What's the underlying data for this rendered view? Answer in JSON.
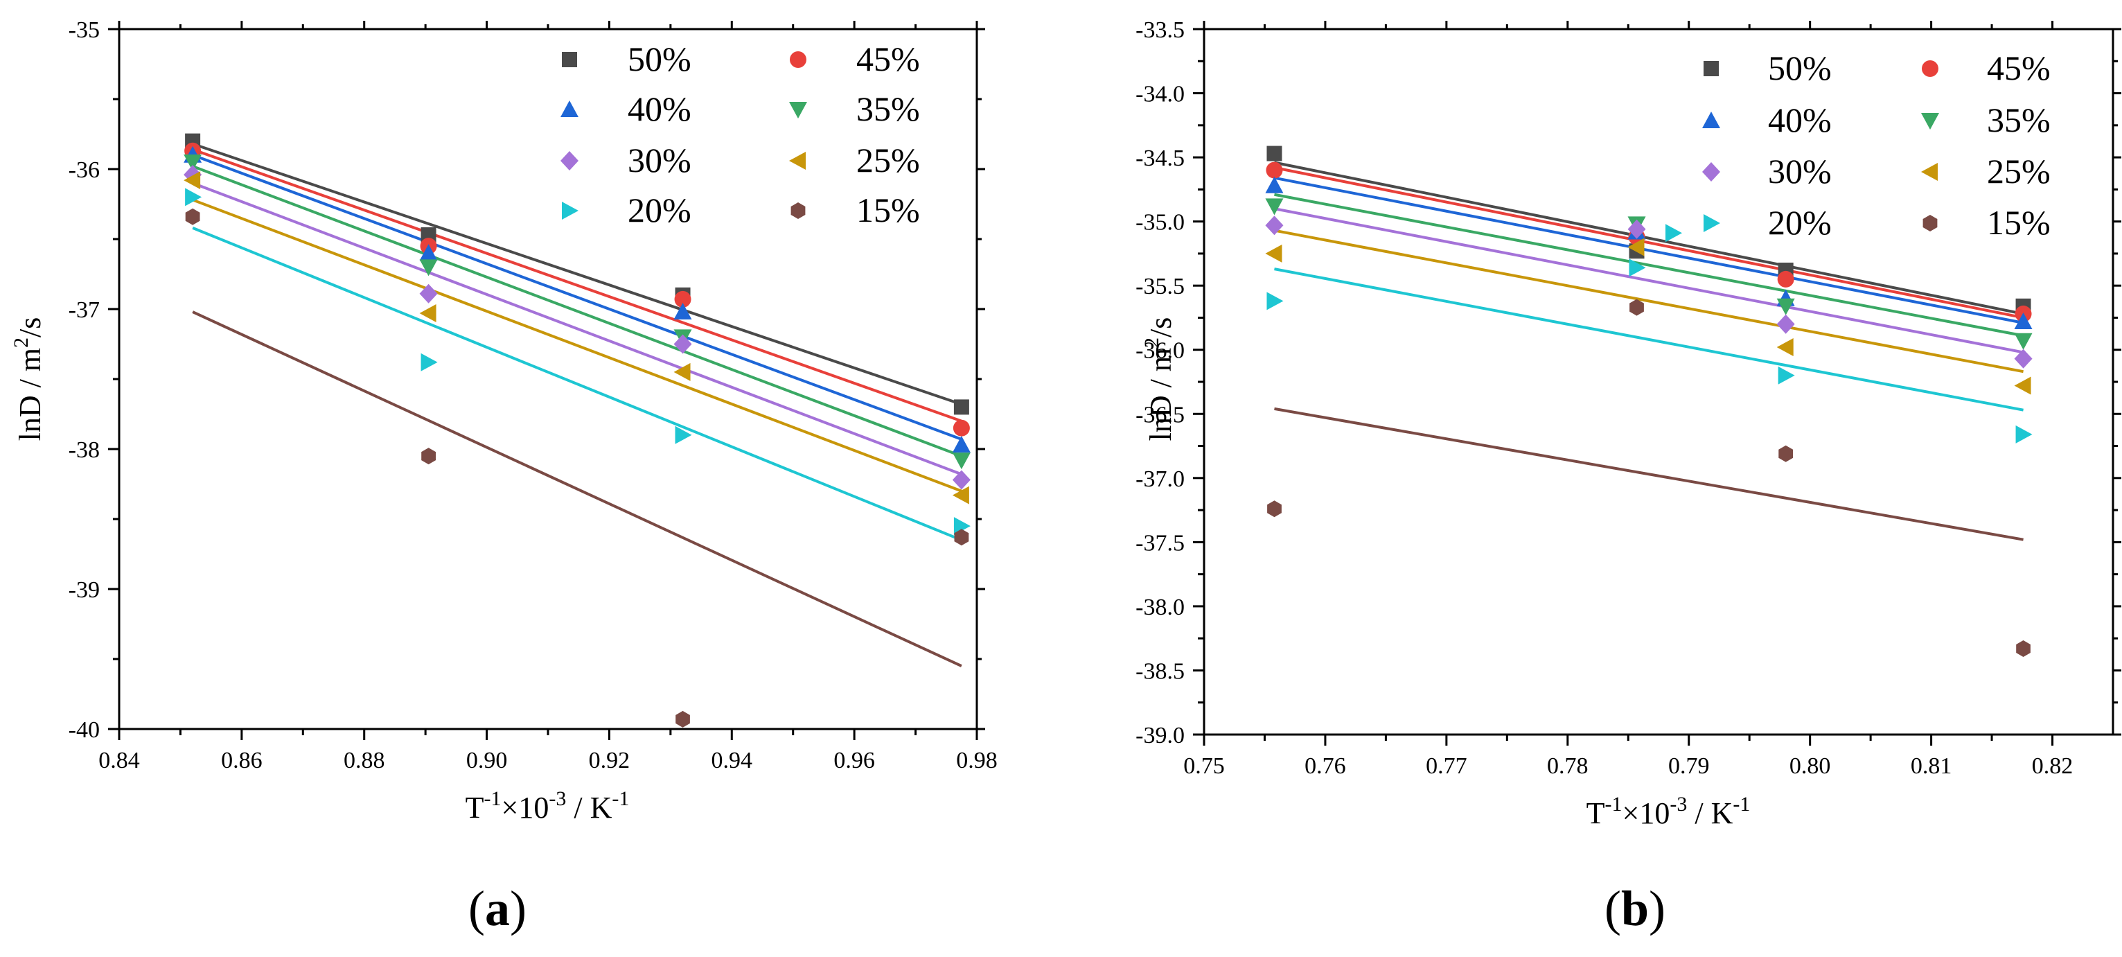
{
  "series_styles": [
    {
      "name": "50%",
      "color": "#4a4a4a",
      "marker": "square"
    },
    {
      "name": "45%",
      "color": "#e8403a",
      "marker": "circle"
    },
    {
      "name": "40%",
      "color": "#1e66d6",
      "marker": "triangle-up"
    },
    {
      "name": "35%",
      "color": "#3aa864",
      "marker": "triangle-down"
    },
    {
      "name": "30%",
      "color": "#a472d8",
      "marker": "diamond"
    },
    {
      "name": "25%",
      "color": "#c8960a",
      "marker": "triangle-left"
    },
    {
      "name": "20%",
      "color": "#1ec6d2",
      "marker": "triangle-right"
    },
    {
      "name": "15%",
      "color": "#7a4a44",
      "marker": "hexagon"
    }
  ],
  "chart_data": [
    {
      "type": "scatter",
      "title": "",
      "xlabel": {
        "base": "T",
        "exp1": "-1",
        "mid": "×10",
        "exp2": "-3",
        "tail": " / K",
        "exp3": "-1"
      },
      "ylabel": {
        "base": "lnD / m",
        "exp": "2",
        "tail": "/s"
      },
      "xlim": [
        0.84,
        0.98
      ],
      "ylim": [
        -40,
        -35
      ],
      "xticks": [
        0.84,
        0.86,
        0.88,
        0.9,
        0.92,
        0.94,
        0.96,
        0.98
      ],
      "xtick_labels": [
        "0.84",
        "0.86",
        "0.88",
        "0.90",
        "0.92",
        "0.94",
        "0.96",
        "0.98"
      ],
      "yticks": [
        -40,
        -39,
        -38,
        -37,
        -36,
        -35
      ],
      "ytick_labels": [
        "-40",
        "-39",
        "-38",
        "-37",
        "-36",
        "-35"
      ],
      "panel_label": {
        "open": "(",
        "letter": "a",
        "close": ")"
      },
      "series": [
        {
          "name": "50%",
          "points": [
            [
              0.852,
              -35.8
            ],
            [
              0.8905,
              -36.47
            ],
            [
              0.932,
              -36.9
            ],
            [
              0.9775,
              -37.7
            ]
          ],
          "fit": [
            [
              0.852,
              -35.82
            ],
            [
              0.9775,
              -37.68
            ]
          ]
        },
        {
          "name": "45%",
          "points": [
            [
              0.852,
              -35.87
            ],
            [
              0.8905,
              -36.55
            ],
            [
              0.932,
              -36.93
            ],
            [
              0.9775,
              -37.85
            ]
          ],
          "fit": [
            [
              0.852,
              -35.86
            ],
            [
              0.9775,
              -37.8
            ]
          ]
        },
        {
          "name": "40%",
          "points": [
            [
              0.852,
              -35.9
            ],
            [
              0.8905,
              -36.6
            ],
            [
              0.932,
              -37.02
            ],
            [
              0.9775,
              -37.97
            ]
          ],
          "fit": [
            [
              0.852,
              -35.9
            ],
            [
              0.9775,
              -37.93
            ]
          ]
        },
        {
          "name": "35%",
          "points": [
            [
              0.852,
              -35.95
            ],
            [
              0.8905,
              -36.7
            ],
            [
              0.932,
              -37.2
            ],
            [
              0.9775,
              -38.08
            ]
          ],
          "fit": [
            [
              0.852,
              -35.98
            ],
            [
              0.9775,
              -38.05
            ]
          ]
        },
        {
          "name": "30%",
          "points": [
            [
              0.852,
              -36.04
            ],
            [
              0.8905,
              -36.89
            ],
            [
              0.932,
              -37.25
            ],
            [
              0.9775,
              -38.22
            ]
          ],
          "fit": [
            [
              0.852,
              -36.1
            ],
            [
              0.9775,
              -38.18
            ]
          ]
        },
        {
          "name": "25%",
          "points": [
            [
              0.852,
              -36.08
            ],
            [
              0.8905,
              -37.03
            ],
            [
              0.932,
              -37.45
            ],
            [
              0.9775,
              -38.33
            ]
          ],
          "fit": [
            [
              0.852,
              -36.22
            ],
            [
              0.9775,
              -38.3
            ]
          ]
        },
        {
          "name": "20%",
          "points": [
            [
              0.852,
              -36.2
            ],
            [
              0.8905,
              -37.38
            ],
            [
              0.932,
              -37.9
            ],
            [
              0.9775,
              -38.55
            ]
          ],
          "fit": [
            [
              0.852,
              -36.42
            ],
            [
              0.9775,
              -38.65
            ]
          ]
        },
        {
          "name": "15%",
          "points": [
            [
              0.852,
              -36.34
            ],
            [
              0.8905,
              -38.05
            ],
            [
              0.932,
              -39.93
            ],
            [
              0.9775,
              -38.63
            ]
          ],
          "fit": [
            [
              0.852,
              -37.02
            ],
            [
              0.9775,
              -39.55
            ]
          ]
        }
      ]
    },
    {
      "type": "scatter",
      "title": "",
      "xlabel": {
        "base": "T",
        "exp1": "-1",
        "mid": "×10",
        "exp2": "-3",
        "tail": " / K",
        "exp3": "-1"
      },
      "ylabel": {
        "base": "lnD / m",
        "exp": "2",
        "tail": "/s"
      },
      "xlim": [
        0.75,
        0.825
      ],
      "ylim": [
        -39.0,
        -33.5
      ],
      "xticks": [
        0.75,
        0.76,
        0.77,
        0.78,
        0.79,
        0.8,
        0.81,
        0.82
      ],
      "xtick_labels": [
        "0.75",
        "0.76",
        "0.77",
        "0.78",
        "0.79",
        "0.80",
        "0.81",
        "0.82"
      ],
      "yticks": [
        -39.0,
        -38.5,
        -38.0,
        -37.5,
        -37.0,
        -36.5,
        -36.0,
        -35.5,
        -35.0,
        -34.5,
        -34.0,
        -33.5
      ],
      "ytick_labels": [
        "-39.0",
        "-38.5",
        "-38.0",
        "-37.5",
        "-37.0",
        "-36.5",
        "-36.0",
        "-35.5",
        "-35.0",
        "-34.5",
        "-34.0",
        "-33.5"
      ],
      "panel_label": {
        "open": "(",
        "letter": "b",
        "close": ")"
      },
      "series": [
        {
          "name": "50%",
          "points": [
            [
              0.7558,
              -34.47
            ],
            [
              0.7857,
              -35.23
            ],
            [
              0.798,
              -35.38
            ],
            [
              0.8176,
              -35.66
            ]
          ],
          "fit": [
            [
              0.7558,
              -34.54
            ],
            [
              0.8176,
              -35.72
            ]
          ]
        },
        {
          "name": "45%",
          "points": [
            [
              0.7558,
              -34.6
            ],
            [
              0.7857,
              -35.12
            ],
            [
              0.798,
              -35.45
            ],
            [
              0.8176,
              -35.72
            ]
          ],
          "fit": [
            [
              0.7558,
              -34.58
            ],
            [
              0.8176,
              -35.75
            ]
          ]
        },
        {
          "name": "40%",
          "points": [
            [
              0.7558,
              -34.72
            ],
            [
              0.7857,
              -35.08
            ],
            [
              0.798,
              -35.6
            ],
            [
              0.8176,
              -35.78
            ]
          ],
          "fit": [
            [
              0.7558,
              -34.66
            ],
            [
              0.8176,
              -35.79
            ]
          ]
        },
        {
          "name": "35%",
          "points": [
            [
              0.7558,
              -34.88
            ],
            [
              0.7857,
              -35.02
            ],
            [
              0.798,
              -35.66
            ],
            [
              0.8176,
              -35.93
            ]
          ],
          "fit": [
            [
              0.7558,
              -34.79
            ],
            [
              0.8176,
              -35.89
            ]
          ]
        },
        {
          "name": "30%",
          "points": [
            [
              0.7558,
              -35.03
            ],
            [
              0.7857,
              -35.06
            ],
            [
              0.798,
              -35.8
            ],
            [
              0.8176,
              -36.07
            ]
          ],
          "fit": [
            [
              0.7558,
              -34.9
            ],
            [
              0.8176,
              -36.02
            ]
          ]
        },
        {
          "name": "25%",
          "points": [
            [
              0.7558,
              -35.25
            ],
            [
              0.7857,
              -35.2
            ],
            [
              0.798,
              -35.98
            ],
            [
              0.8176,
              -36.28
            ]
          ],
          "fit": [
            [
              0.7558,
              -35.07
            ],
            [
              0.8176,
              -36.17
            ]
          ]
        },
        {
          "name": "20%",
          "points": [
            [
              0.7558,
              -35.62
            ],
            [
              0.7857,
              -35.36
            ],
            [
              0.7887,
              -35.09
            ],
            [
              0.798,
              -36.2
            ],
            [
              0.8176,
              -36.66
            ]
          ],
          "fit": [
            [
              0.7558,
              -35.37
            ],
            [
              0.8176,
              -36.47
            ]
          ]
        },
        {
          "name": "15%",
          "points": [
            [
              0.7558,
              -37.24
            ],
            [
              0.7857,
              -35.67
            ],
            [
              0.798,
              -36.81
            ],
            [
              0.8176,
              -38.33
            ]
          ],
          "fit": [
            [
              0.7558,
              -36.46
            ],
            [
              0.8176,
              -37.48
            ]
          ]
        }
      ]
    }
  ]
}
